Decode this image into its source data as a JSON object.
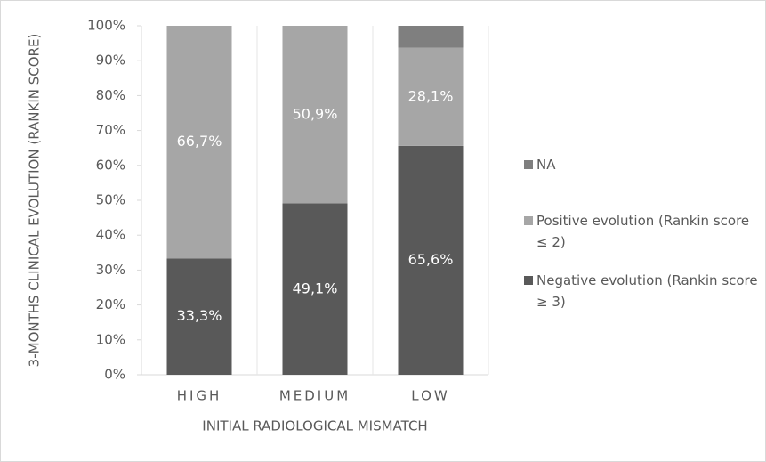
{
  "chart_data": {
    "type": "stacked_bar",
    "y_label": "3-MONTHS CLINICAL EVOLUTION (RANKIN SCORE)",
    "x_label": "INITIAL RADIOLOGICAL MISMATCH",
    "categories": [
      "HIGH",
      "MEDIUM",
      "LOW"
    ],
    "series": [
      {
        "name": "Negative evolution (Rankin score ≥ 3)",
        "color": "#595959",
        "values": [
          33.3,
          49.1,
          65.6
        ],
        "value_labels": [
          "33,3%",
          "49,1%",
          "65,6%"
        ]
      },
      {
        "name": "Positive evolution (Rankin score ≤ 2)",
        "color": "#a6a6a6",
        "values": [
          66.7,
          50.9,
          28.1
        ],
        "value_labels": [
          "66,7%",
          "50,9%",
          "28,1%"
        ]
      },
      {
        "name": "NA",
        "color": "#7f7f7f",
        "values": [
          0,
          0,
          6.3
        ]
      }
    ],
    "ylim": [
      0,
      100
    ],
    "yticks": [
      {
        "value": 0,
        "label": "0%"
      },
      {
        "value": 10,
        "label": "10%"
      },
      {
        "value": 20,
        "label": "20%"
      },
      {
        "value": 30,
        "label": "30%"
      },
      {
        "value": 40,
        "label": "40%"
      },
      {
        "value": 50,
        "label": "50%"
      },
      {
        "value": 60,
        "label": "60%"
      },
      {
        "value": 70,
        "label": "70%"
      },
      {
        "value": 80,
        "label": "80%"
      },
      {
        "value": 90,
        "label": "90%"
      },
      {
        "value": 100,
        "label": "100%"
      }
    ],
    "legend": "right"
  }
}
